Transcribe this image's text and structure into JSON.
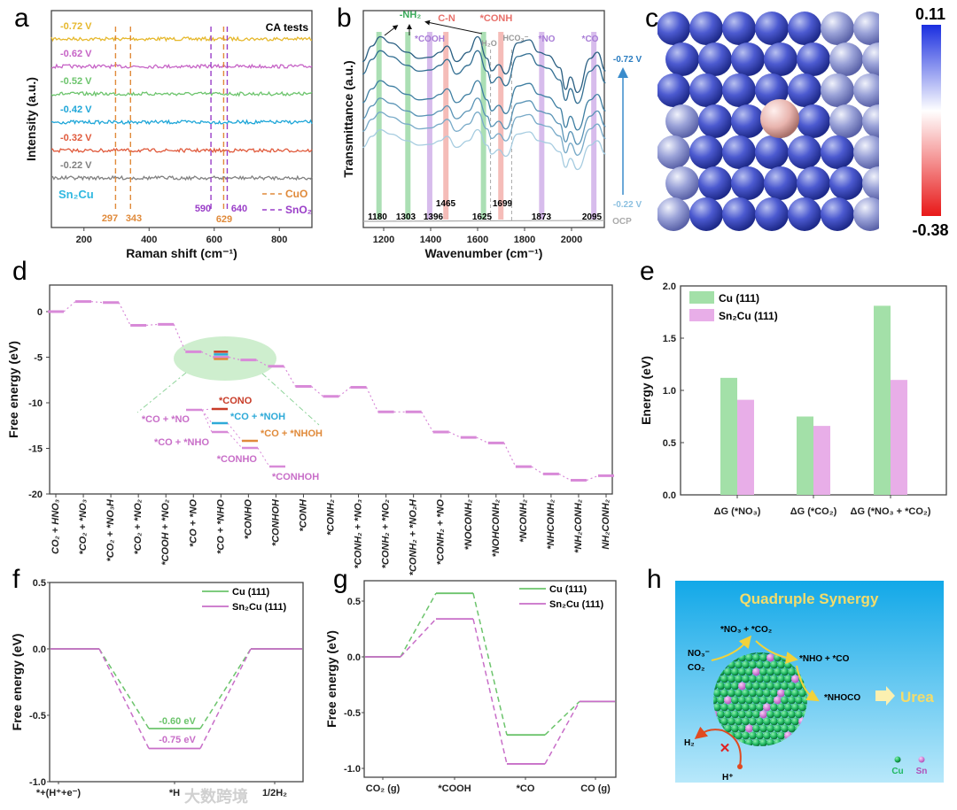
{
  "panel_letters": [
    "a",
    "b",
    "c",
    "d",
    "e",
    "f",
    "g",
    "h"
  ],
  "watermark": "大数跨境",
  "chart_data": [
    {
      "panel": "a",
      "type": "line",
      "xlabel": "Raman shift (cm⁻¹)",
      "ylabel": "Intensity (a.u.)",
      "xlim": [
        100,
        900
      ],
      "xticks": [
        200,
        400,
        600,
        800
      ],
      "annotation": "CA tests",
      "sample": "Sn₂Cu",
      "series": [
        {
          "name": "-0.72 V",
          "color": "#e6b82c"
        },
        {
          "name": "-0.62 V",
          "color": "#c663c6"
        },
        {
          "name": "-0.52 V",
          "color": "#6cc46c"
        },
        {
          "name": "-0.42 V",
          "color": "#1ea6d8"
        },
        {
          "name": "-0.32 V",
          "color": "#e05a3c"
        },
        {
          "name": "-0.22 V",
          "color": "#808080"
        }
      ],
      "reference_lines": [
        {
          "x": 297,
          "label": "297",
          "phase": "CuO"
        },
        {
          "x": 343,
          "label": "343",
          "phase": "CuO"
        },
        {
          "x": 590,
          "label": "590",
          "phase": "SnO₂"
        },
        {
          "x": 629,
          "label": "629",
          "phase": "CuO"
        },
        {
          "x": 640,
          "label": "640",
          "phase": "SnO₂"
        }
      ],
      "legend": [
        {
          "name": "CuO",
          "color": "#e08a3a"
        },
        {
          "name": "SnO₂",
          "color": "#9a3ec8"
        }
      ]
    },
    {
      "panel": "b",
      "type": "line",
      "xlabel": "Wavenumber (cm⁻¹)",
      "ylabel": "Transmittance (a.u.)",
      "xlim": [
        1110,
        2150
      ],
      "xticks": [
        1200,
        1400,
        1600,
        1800,
        2000
      ],
      "series_top": "-0.72 V",
      "series_bottom": "-0.22 V",
      "baseline": "OCP",
      "n_series": 6,
      "bands": [
        {
          "x": 1180,
          "label": "1180",
          "group": "NH2",
          "color": "#8fd49b"
        },
        {
          "x": 1303,
          "label": "1303",
          "group": "NH2",
          "color": "#8fd49b"
        },
        {
          "x": 1625,
          "label": "1625",
          "group": "NH2",
          "color": "#8fd49b"
        },
        {
          "x": 1396,
          "label": "1396",
          "group": "COOH",
          "color": "#c9a6e6"
        },
        {
          "x": 1873,
          "label": "1873",
          "group": "NO",
          "color": "#c9a6e6"
        },
        {
          "x": 2095,
          "label": "2095",
          "group": "CO",
          "color": "#c9a6e6"
        },
        {
          "x": 1465,
          "label": "1465",
          "group": "C-N",
          "color": "#f2a6a0"
        },
        {
          "x": 1699,
          "label": "1699",
          "group": "CONH",
          "color": "#f2a6a0"
        }
      ],
      "dashed": [
        {
          "x": 1655,
          "label": "H₂O"
        },
        {
          "x": 1745,
          "label": "HCO₃⁻"
        }
      ],
      "band_labels": {
        "nh2": "-NH₂",
        "cn": "C-N",
        "conh": "*CONH",
        "cooh": "*COOH",
        "no": "*NO",
        "co": "*CO"
      }
    },
    {
      "panel": "c",
      "type": "heatmap",
      "colorbar_max": "0.11",
      "colorbar_min": "-0.38"
    },
    {
      "panel": "d",
      "type": "line",
      "ylabel": "Free energy (eV)",
      "ylim": [
        -20,
        2.9
      ],
      "yticks": [
        0,
        -5,
        -10,
        -15,
        -20
      ],
      "categories": [
        "CO₂ + HNO₃",
        "*CO₂ + *NO₃",
        "*CO₂ + *NO₃H",
        "*CO₂ + *NO₂",
        "*COOH + *NO₂",
        "*CO + *NO",
        "*CO + *NHO",
        "*CONHO",
        "*CONHOH",
        "*CONH",
        "*CONH₂",
        "*CONH₂ + *NO₃",
        "*CONH₂ + *NO₂",
        "*CONH₂ + *NO₂H",
        "*CONH₂ + *NO",
        "*NOCONH₂",
        "*NOHCONH₂",
        "*NCONH₂",
        "*NHCONH₂",
        "*NH₂CONH₂",
        "NH₂CONH₂"
      ],
      "values": [
        0,
        1.1,
        1.0,
        -1.5,
        -1.4,
        -4.4,
        -5.0,
        -5.3,
        -6.0,
        -8.2,
        -9.3,
        -8.3,
        -11.0,
        -11.0,
        -13.2,
        -13.8,
        -14.4,
        -17.0,
        -17.8,
        -18.5,
        -18.0
      ],
      "side_paths": [
        {
          "name": "*CONO",
          "value": -4.4,
          "color": "#c83c28"
        },
        {
          "name": "*CO + *NOH",
          "value": -4.7,
          "color": "#2eaad8"
        },
        {
          "name": "*CO + *NHOH",
          "value": -5.2,
          "color": "#e08a3a"
        }
      ],
      "inset_labels": [
        "*CO + *NO",
        "*CONO",
        "*CO + *NOH",
        "*CO + *NHO",
        "*CO + *NHOH",
        "*CONHO",
        "*CONHOH"
      ]
    },
    {
      "panel": "e",
      "type": "bar",
      "ylabel": "Energy (eV)",
      "ylim": [
        0,
        2.0
      ],
      "yticks": [
        "0.0",
        "0.5",
        "1.0",
        "1.5",
        "2.0"
      ],
      "categories": [
        "ΔG (*NO₃)",
        "ΔG (*CO₂)",
        "ΔG (*NO₃ + *CO₂)"
      ],
      "series": [
        {
          "name": "Cu (111)",
          "color": "#a3e0a8",
          "values": [
            1.12,
            0.75,
            1.81
          ]
        },
        {
          "name": "Sn₂Cu (111)",
          "color": "#e8aee8",
          "values": [
            0.91,
            0.66,
            1.1
          ]
        }
      ]
    },
    {
      "panel": "f",
      "type": "line",
      "ylabel": "Free energy (eV)",
      "ylim": [
        -1.0,
        0.5
      ],
      "yticks": [
        "0.5",
        "0.0",
        "-0.5",
        "-1.0"
      ],
      "categories": [
        "*+(H⁺+e⁻)",
        "*H",
        "1/2H₂"
      ],
      "series": [
        {
          "name": "Cu (111)",
          "color": "#6cc46c",
          "values": [
            0,
            -0.6,
            0
          ]
        },
        {
          "name": "Sn₂Cu (111)",
          "color": "#c86ec8",
          "values": [
            0,
            -0.75,
            0
          ]
        }
      ],
      "annotations": [
        "-0.60 eV",
        "-0.75 eV"
      ]
    },
    {
      "panel": "g",
      "type": "line",
      "ylabel": "Free energy (eV)",
      "ylim": [
        -1.05,
        0.7
      ],
      "yticks": [
        "0.5",
        "0.0",
        "-0.5",
        "-1.0"
      ],
      "categories": [
        "CO₂ (g)",
        "*COOH",
        "*CO",
        "CO (g)"
      ],
      "series": [
        {
          "name": "Cu (111)",
          "color": "#6cc46c",
          "values": [
            0,
            0.57,
            -0.7,
            -0.4
          ]
        },
        {
          "name": "Sn₂Cu (111)",
          "color": "#c86ec8",
          "values": [
            0,
            0.34,
            -0.96,
            -0.4
          ]
        }
      ]
    }
  ],
  "schematic": {
    "title": "Quadruple Synergy",
    "reactants_1": "NO₃⁻",
    "reactants_2": "CO₂",
    "step1": "*NO₃ + *CO₂",
    "step2": "*NHO + *CO",
    "step3": "*NHOCO",
    "product": "Urea",
    "h2": "H₂",
    "hplus": "H⁺",
    "legend_cu": "Cu",
    "legend_sn": "Sn"
  }
}
